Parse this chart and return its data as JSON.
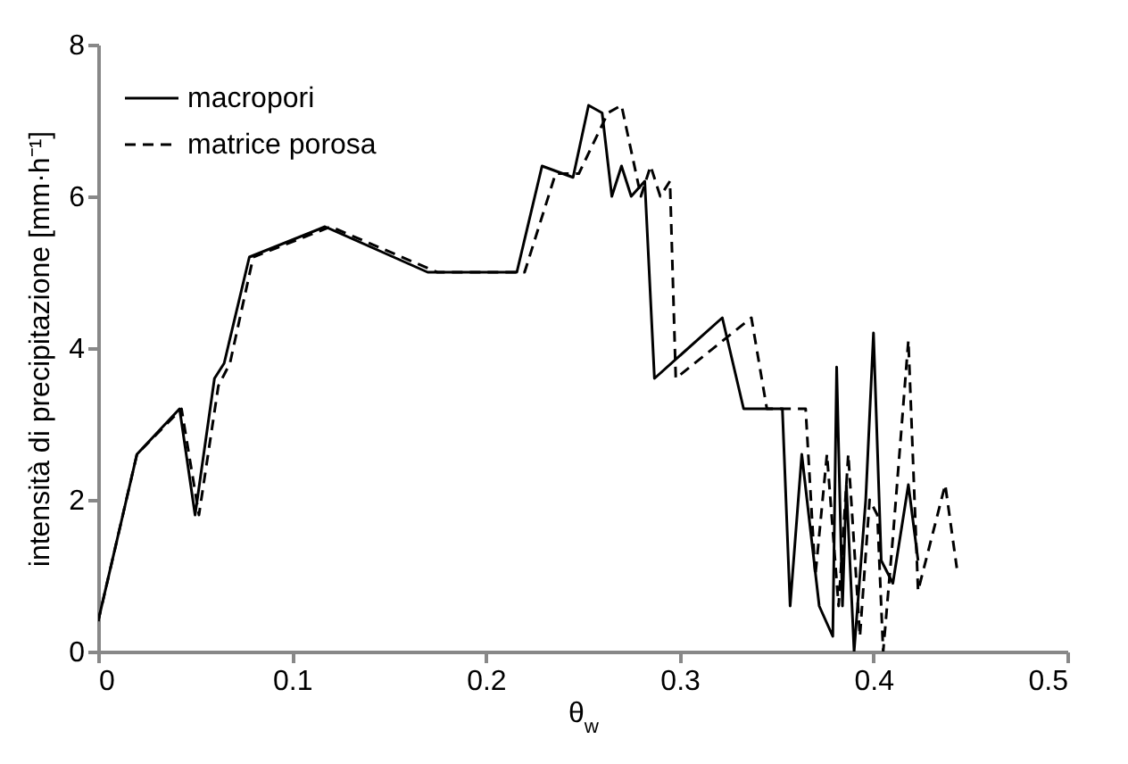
{
  "chart_data": {
    "type": "line",
    "xlabel": "θ$_{w}$",
    "ylabel": "intensità di precipitazione [mm·h⁻¹]",
    "xlim": [
      0,
      0.5
    ],
    "xticks": [
      0,
      0.1,
      0.2,
      0.3,
      0.4,
      0.5
    ],
    "ylim": [
      0,
      8
    ],
    "yticks": [
      0,
      2,
      4,
      6,
      8
    ],
    "legend": "top left",
    "grid": false,
    "series": [
      {
        "name": "macropori",
        "color": "#000000",
        "line_style": "solid",
        "x": [
          0,
          0.02,
          0.042,
          0.05,
          0.06,
          0.065,
          0.078,
          0.117,
          0.17,
          0.216,
          0.229,
          0.245,
          0.253,
          0.26,
          0.265,
          0.27,
          0.275,
          0.282,
          0.287,
          0.322,
          0.333,
          0.353,
          0.357,
          0.363,
          0.372,
          0.379,
          0.381,
          0.384,
          0.386,
          0.39,
          0.396,
          0.4,
          0.404,
          0.41,
          0.418,
          0.423
        ],
        "values": [
          0.4,
          2.6,
          3.2,
          1.8,
          3.6,
          3.8,
          5.2,
          5.6,
          5.0,
          5.0,
          6.4,
          6.25,
          7.2,
          7.1,
          6.0,
          6.4,
          6.0,
          6.2,
          3.6,
          4.4,
          3.2,
          3.2,
          0.6,
          2.6,
          0.6,
          0.2,
          3.75,
          0.6,
          2.2,
          0.0,
          2.0,
          4.2,
          1.2,
          0.9,
          2.2,
          1.2
        ]
      },
      {
        "name": "matrice porosa",
        "color": "#000000",
        "line_style": "dashed",
        "x": [
          0,
          0.02,
          0.043,
          0.052,
          0.062,
          0.068,
          0.08,
          0.12,
          0.175,
          0.22,
          0.236,
          0.248,
          0.263,
          0.27,
          0.28,
          0.285,
          0.29,
          0.295,
          0.298,
          0.337,
          0.345,
          0.365,
          0.37,
          0.376,
          0.382,
          0.387,
          0.393,
          0.398,
          0.402,
          0.405,
          0.41,
          0.418,
          0.423,
          0.437,
          0.443
        ],
        "values": [
          0.4,
          2.6,
          3.2,
          1.8,
          3.5,
          3.8,
          5.2,
          5.6,
          5.0,
          5.0,
          6.3,
          6.3,
          7.1,
          7.2,
          6.0,
          6.4,
          6.0,
          6.2,
          3.6,
          4.4,
          3.2,
          3.2,
          1.0,
          2.6,
          0.6,
          2.6,
          0.2,
          2.0,
          1.8,
          0.0,
          1.5,
          4.1,
          0.8,
          2.2,
          1.1
        ]
      }
    ]
  }
}
